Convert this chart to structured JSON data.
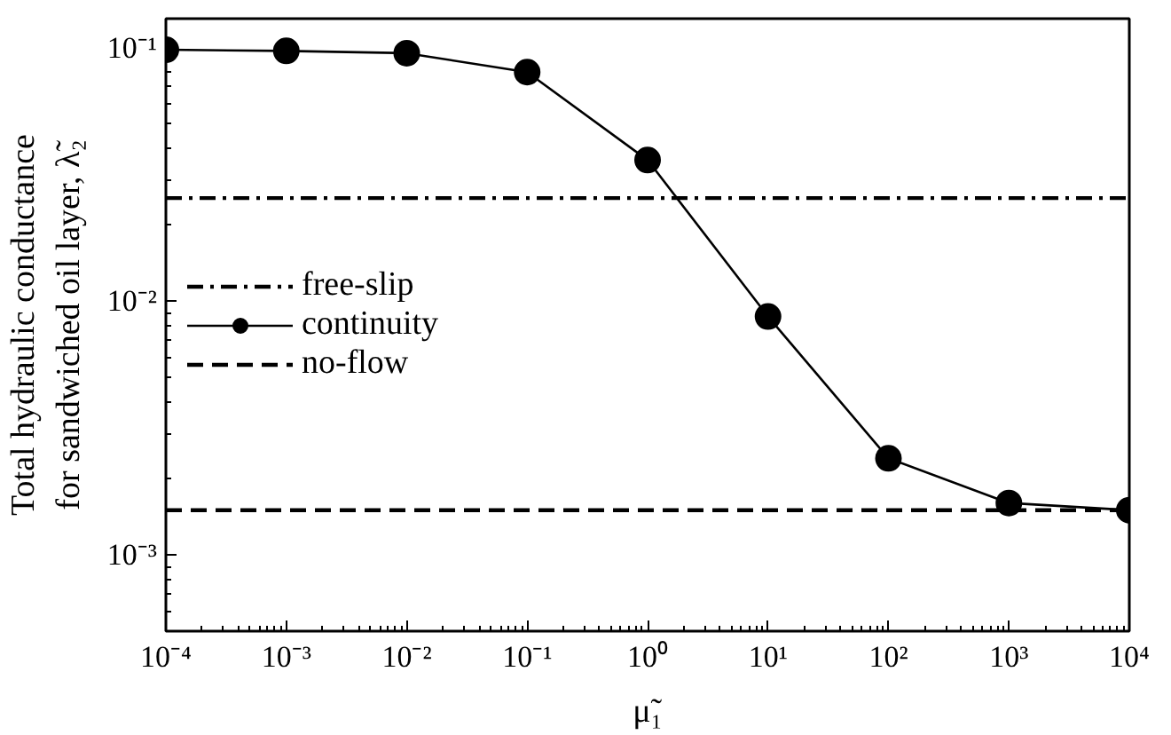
{
  "chart_data": {
    "type": "line",
    "xlabel": "μ̃₁",
    "ylabel": "Total hydraulic conductance\nfor sandwiched oil layer, λ̃₂",
    "x": [
      0.0001,
      0.001,
      0.01,
      0.1,
      1,
      10,
      100,
      1000,
      10000
    ],
    "series": [
      {
        "name": "continuity",
        "color": "#000000",
        "values": [
          0.098,
          0.097,
          0.095,
          0.08,
          0.036,
          0.0087,
          0.0024,
          0.0016,
          0.0015
        ]
      }
    ],
    "ref_lines": [
      {
        "axis": "y",
        "value": 0.0255,
        "label": "free-slip",
        "color": "#000000",
        "line_style": "dashdot"
      },
      {
        "axis": "y",
        "value": 0.0015,
        "label": "no-flow",
        "color": "#000000",
        "line_style": "dashed"
      }
    ],
    "log": "xy",
    "marker": "circle",
    "line_style": "solid",
    "grid": false,
    "legend": "left",
    "xlim": [
      0.0001,
      10000
    ],
    "ylim": [
      0.0005,
      0.13
    ],
    "xticks": [
      {
        "value": 0.0001,
        "label": "10⁻⁴"
      },
      {
        "value": 0.001,
        "label": "10⁻³"
      },
      {
        "value": 0.01,
        "label": "10⁻²"
      },
      {
        "value": 0.1,
        "label": "10⁻¹"
      },
      {
        "value": 1,
        "label": "10⁰"
      },
      {
        "value": 10,
        "label": "10¹"
      },
      {
        "value": 100,
        "label": "10²"
      },
      {
        "value": 1000,
        "label": "10³"
      },
      {
        "value": 10000,
        "label": "10⁴"
      }
    ],
    "yticks": [
      {
        "value": 0.001,
        "label": "10⁻³"
      },
      {
        "value": 0.01,
        "label": "10⁻²"
      },
      {
        "value": 0.1,
        "label": "10⁻¹"
      }
    ]
  }
}
